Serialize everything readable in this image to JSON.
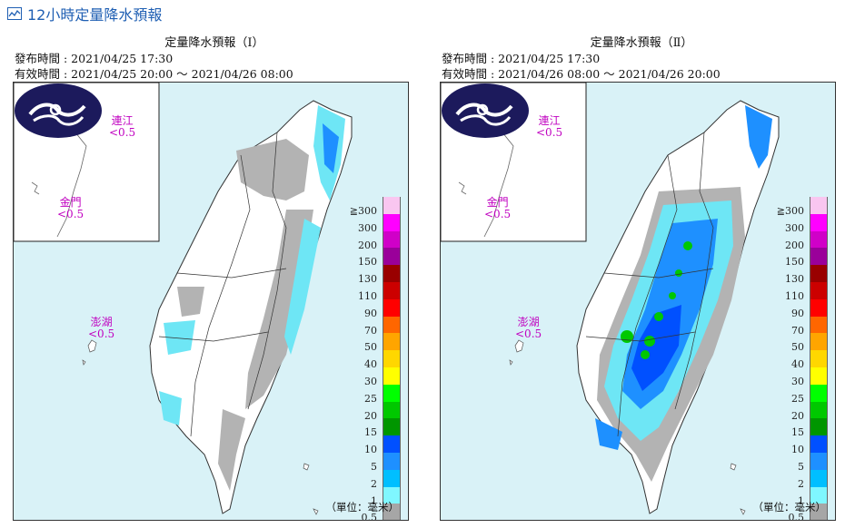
{
  "page": {
    "title": "12小時定量降水預報"
  },
  "panels": [
    {
      "title": "定量降水預報（Ⅰ）",
      "issued": "發布時間 : 2021/04/25 17:30",
      "valid": "有效時間 : 2021/04/25 20:00 ～ 2021/04/26 08:00",
      "regions": [
        {
          "name": "連江",
          "value": "<0.5"
        },
        {
          "name": "金門",
          "value": "<0.5"
        },
        {
          "name": "澎湖",
          "value": "<0.5"
        }
      ],
      "unit": "（單位：毫米）"
    },
    {
      "title": "定量降水預報（Ⅱ）",
      "issued": "發布時間 : 2021/04/25 17:30",
      "valid": "有效時間 : 2021/04/26 08:00 ～ 2021/04/26 20:00",
      "regions": [
        {
          "name": "連江",
          "value": "<0.5"
        },
        {
          "name": "金門",
          "value": "<0.5"
        },
        {
          "name": "澎湖",
          "value": "<0.5"
        }
      ],
      "unit": "（單位：毫米）"
    }
  ],
  "legend": {
    "levels": [
      {
        "label": "≧300",
        "color": "#f9c6f0"
      },
      {
        "label": "300",
        "color": "#ff00ff"
      },
      {
        "label": "200",
        "color": "#d000c8"
      },
      {
        "label": "150",
        "color": "#9a009a"
      },
      {
        "label": "130",
        "color": "#990000"
      },
      {
        "label": "110",
        "color": "#cc0000"
      },
      {
        "label": "90",
        "color": "#ff0000"
      },
      {
        "label": "70",
        "color": "#ff6600"
      },
      {
        "label": "50",
        "color": "#ffa500"
      },
      {
        "label": "40",
        "color": "#ffd700"
      },
      {
        "label": "30",
        "color": "#ffff00"
      },
      {
        "label": "25",
        "color": "#00ff00"
      },
      {
        "label": "20",
        "color": "#00c800"
      },
      {
        "label": "15",
        "color": "#009600"
      },
      {
        "label": "10",
        "color": "#0050ff"
      },
      {
        "label": "5",
        "color": "#1e90ff"
      },
      {
        "label": "2",
        "color": "#00bfff"
      },
      {
        "label": "1",
        "color": "#7ff7ff"
      },
      {
        "label": "0.5",
        "color": "#a6a6a6"
      }
    ],
    "bottom_label": "0.5"
  }
}
